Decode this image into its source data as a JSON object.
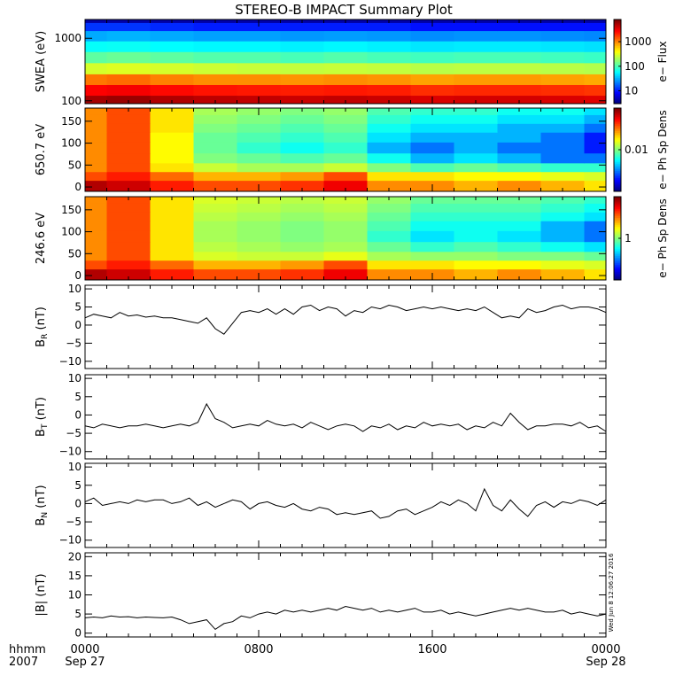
{
  "title": "STEREO-B IMPACT Summary Plot",
  "stamp": "Wed Jun  8 12:06:27 2016",
  "time_axis": {
    "row1_label": "hhmm",
    "row2_label": "2007",
    "ticks": [
      {
        "hour": 0,
        "time": "0000",
        "date": "Sep 27"
      },
      {
        "hour": 8,
        "time": "0800",
        "date": ""
      },
      {
        "hour": 16,
        "time": "1600",
        "date": ""
      },
      {
        "hour": 24,
        "time": "0000",
        "date": "Sep 28"
      }
    ]
  },
  "chart_data": [
    {
      "type": "heatmap",
      "panel": "swea",
      "ylabel": "SWEA (eV)",
      "yscale": "log",
      "ylim": [
        90,
        2000
      ],
      "yticks": [
        {
          "v": 100,
          "label": "100"
        },
        {
          "v": 1000,
          "label": "1000"
        }
      ],
      "colorbar": {
        "label": "e− Flux",
        "scale": "log",
        "range": [
          3,
          8000
        ],
        "ticks": [
          {
            "v": 10,
            "label": "10"
          },
          {
            "v": 100,
            "label": "100"
          },
          {
            "v": 1000,
            "label": "1000"
          }
        ]
      },
      "x_hours": [
        0,
        2,
        4,
        6,
        8,
        10,
        12,
        14,
        16,
        18,
        20,
        22,
        24
      ],
      "energy_eV": [
        100,
        150,
        220,
        330,
        500,
        750,
        1100,
        1600,
        2000
      ],
      "flux": [
        [
          6000,
          6500,
          5500,
          5000,
          4800,
          4500,
          4800,
          4500,
          4000,
          4200,
          4200,
          4000,
          3800
        ],
        [
          3000,
          3200,
          2800,
          2600,
          2500,
          2400,
          2500,
          2400,
          2100,
          2200,
          2200,
          2100,
          2000
        ],
        [
          1200,
          1300,
          1100,
          1000,
          1000,
          950,
          1000,
          950,
          850,
          900,
          900,
          850,
          800
        ],
        [
          300,
          320,
          300,
          280,
          270,
          260,
          270,
          260,
          240,
          250,
          250,
          240,
          230
        ],
        [
          120,
          130,
          120,
          110,
          110,
          100,
          110,
          100,
          95,
          100,
          100,
          95,
          90
        ],
        [
          60,
          62,
          58,
          55,
          55,
          52,
          55,
          52,
          48,
          50,
          50,
          48,
          46
        ],
        [
          30,
          32,
          30,
          28,
          28,
          26,
          27,
          26,
          24,
          25,
          25,
          24,
          23
        ],
        [
          12,
          12,
          11,
          10,
          10,
          10,
          10,
          10,
          9,
          9,
          9,
          9,
          9
        ],
        [
          4,
          4,
          4,
          4,
          4,
          4,
          4,
          4,
          4,
          4,
          4,
          4,
          4
        ]
      ]
    },
    {
      "type": "heatmap",
      "panel": "pad650",
      "ylabel": "650.7 eV",
      "ylim": [
        -10,
        180
      ],
      "yticks": [
        {
          "v": 0,
          "label": "0"
        },
        {
          "v": 50,
          "label": "50"
        },
        {
          "v": 100,
          "label": "100"
        },
        {
          "v": 150,
          "label": "150"
        }
      ],
      "colorbar": {
        "label": "e− Ph Sp Dens",
        "scale": "log",
        "range": [
          0.001,
          0.1
        ],
        "ticks": [
          {
            "v": 0.01,
            "label": "0.01"
          }
        ]
      },
      "x_hours": [
        0,
        2,
        4,
        6,
        8,
        10,
        12,
        14,
        16,
        18,
        20,
        22,
        24
      ],
      "pitch_angle_deg": [
        5,
        25,
        45,
        65,
        90,
        115,
        135,
        155,
        175
      ],
      "psd": [
        [
          0.08,
          0.07,
          0.05,
          0.04,
          0.04,
          0.045,
          0.06,
          0.03,
          0.03,
          0.025,
          0.03,
          0.025,
          0.02
        ],
        [
          0.04,
          0.05,
          0.035,
          0.025,
          0.025,
          0.028,
          0.04,
          0.02,
          0.02,
          0.018,
          0.018,
          0.016,
          0.015
        ],
        [
          0.03,
          0.04,
          0.02,
          0.014,
          0.012,
          0.012,
          0.014,
          0.01,
          0.008,
          0.009,
          0.008,
          0.007,
          0.007
        ],
        [
          0.03,
          0.04,
          0.018,
          0.01,
          0.009,
          0.008,
          0.009,
          0.006,
          0.004,
          0.005,
          0.004,
          0.003,
          0.003
        ],
        [
          0.03,
          0.04,
          0.018,
          0.009,
          0.007,
          0.006,
          0.007,
          0.004,
          0.003,
          0.004,
          0.003,
          0.003,
          0.002
        ],
        [
          0.03,
          0.04,
          0.018,
          0.009,
          0.008,
          0.007,
          0.008,
          0.005,
          0.004,
          0.004,
          0.004,
          0.003,
          0.002
        ],
        [
          0.03,
          0.04,
          0.02,
          0.01,
          0.009,
          0.008,
          0.009,
          0.006,
          0.005,
          0.005,
          0.004,
          0.004,
          0.003
        ],
        [
          0.03,
          0.04,
          0.02,
          0.011,
          0.01,
          0.009,
          0.01,
          0.007,
          0.006,
          0.006,
          0.005,
          0.005,
          0.004
        ],
        [
          0.03,
          0.04,
          0.02,
          0.012,
          0.011,
          0.01,
          0.011,
          0.008,
          0.007,
          0.007,
          0.006,
          0.006,
          0.005
        ]
      ]
    },
    {
      "type": "heatmap",
      "panel": "pad246",
      "ylabel": "246.6 eV",
      "ylim": [
        -10,
        180
      ],
      "yticks": [
        {
          "v": 0,
          "label": "0"
        },
        {
          "v": 50,
          "label": "50"
        },
        {
          "v": 100,
          "label": "100"
        },
        {
          "v": 150,
          "label": "150"
        }
      ],
      "colorbar": {
        "label": "e− Ph Sp Dens",
        "scale": "log",
        "range": [
          0.1,
          10
        ],
        "ticks": [
          {
            "v": 1,
            "label": "1"
          }
        ]
      },
      "x_hours": [
        0,
        2,
        4,
        6,
        8,
        10,
        12,
        14,
        16,
        18,
        20,
        22,
        24
      ],
      "pitch_angle_deg": [
        5,
        25,
        45,
        65,
        90,
        115,
        135,
        155,
        175
      ],
      "psd": [
        [
          8,
          7,
          5,
          4,
          4,
          4.5,
          6,
          3,
          3,
          2.5,
          3,
          2.5,
          2
        ],
        [
          4,
          5,
          3.5,
          2.5,
          2.5,
          2.8,
          4,
          2,
          2,
          1.8,
          1.8,
          1.6,
          1.5
        ],
        [
          3,
          4,
          2,
          1.5,
          1.4,
          1.4,
          1.6,
          1.2,
          1.1,
          1.1,
          1,
          1,
          0.9
        ],
        [
          3,
          4,
          2,
          1.3,
          1.2,
          1.1,
          1.2,
          0.9,
          0.7,
          0.8,
          0.7,
          0.6,
          0.5
        ],
        [
          3,
          4,
          2,
          1.2,
          1.1,
          1,
          1.1,
          0.7,
          0.5,
          0.6,
          0.5,
          0.4,
          0.3
        ],
        [
          3,
          4,
          2,
          1.2,
          1.1,
          1,
          1.1,
          0.8,
          0.6,
          0.6,
          0.6,
          0.4,
          0.3
        ],
        [
          3,
          4,
          2,
          1.3,
          1.2,
          1.1,
          1.2,
          0.9,
          0.7,
          0.7,
          0.7,
          0.6,
          0.5
        ],
        [
          3,
          4,
          2,
          1.4,
          1.3,
          1.2,
          1.3,
          1,
          0.8,
          0.8,
          0.8,
          0.7,
          0.6
        ],
        [
          3,
          4,
          2,
          1.5,
          1.4,
          1.3,
          1.4,
          1.1,
          0.9,
          0.9,
          0.9,
          0.8,
          0.7
        ]
      ]
    },
    {
      "type": "line",
      "panel": "br",
      "ylabel": "B_R (nT)",
      "ylim": [
        -12,
        11
      ],
      "yticks": [
        {
          "v": -10,
          "label": "−10"
        },
        {
          "v": -5,
          "label": "−5"
        },
        {
          "v": 0,
          "label": "0"
        },
        {
          "v": 5,
          "label": "5"
        },
        {
          "v": 10,
          "label": "10"
        }
      ],
      "x_hours": [
        0,
        0.4,
        0.8,
        1.2,
        1.6,
        2.0,
        2.4,
        2.8,
        3.2,
        3.6,
        4.0,
        4.4,
        4.8,
        5.2,
        5.6,
        6.0,
        6.4,
        6.8,
        7.2,
        7.6,
        8.0,
        8.4,
        8.8,
        9.2,
        9.6,
        10.0,
        10.4,
        10.8,
        11.2,
        11.6,
        12.0,
        12.4,
        12.8,
        13.2,
        13.6,
        14.0,
        14.4,
        14.8,
        15.2,
        15.6,
        16.0,
        16.4,
        16.8,
        17.2,
        17.6,
        18.0,
        18.4,
        18.8,
        19.2,
        19.6,
        20.0,
        20.4,
        20.8,
        21.2,
        21.6,
        22.0,
        22.4,
        22.8,
        23.2,
        23.6,
        24.0
      ],
      "values": [
        2.0,
        3.0,
        2.5,
        2.0,
        3.5,
        2.5,
        2.8,
        2.2,
        2.5,
        2.0,
        2.0,
        1.5,
        1.0,
        0.5,
        2.0,
        -1.0,
        -2.5,
        0.5,
        3.5,
        4.0,
        3.5,
        4.5,
        3.0,
        4.5,
        3.0,
        5.0,
        5.5,
        4.0,
        5.0,
        4.5,
        2.5,
        4.0,
        3.5,
        5.0,
        4.5,
        5.5,
        5.0,
        4.0,
        4.5,
        5.0,
        4.5,
        5.0,
        4.5,
        4.0,
        4.5,
        4.0,
        5.0,
        3.5,
        2.0,
        2.5,
        2.0,
        4.5,
        3.5,
        4.0,
        5.0,
        5.5,
        4.5,
        5.0,
        5.0,
        4.5,
        3.5
      ],
      "gap_after_index": [],
      "end_values": [
        4.0,
        2.0,
        -4.0,
        -2.0,
        3.5,
        4.5,
        -2.0,
        1.0
      ]
    },
    {
      "type": "line",
      "panel": "bt",
      "ylabel": "B_T (nT)",
      "ylim": [
        -12,
        11
      ],
      "yticks": [
        {
          "v": -10,
          "label": "−10"
        },
        {
          "v": -5,
          "label": "−5"
        },
        {
          "v": 0,
          "label": "0"
        },
        {
          "v": 5,
          "label": "5"
        },
        {
          "v": 10,
          "label": "10"
        }
      ],
      "x_hours": [
        0,
        0.4,
        0.8,
        1.2,
        1.6,
        2.0,
        2.4,
        2.8,
        3.2,
        3.6,
        4.0,
        4.4,
        4.8,
        5.2,
        5.6,
        6.0,
        6.4,
        6.8,
        7.2,
        7.6,
        8.0,
        8.4,
        8.8,
        9.2,
        9.6,
        10.0,
        10.4,
        10.8,
        11.2,
        11.6,
        12.0,
        12.4,
        12.8,
        13.2,
        13.6,
        14.0,
        14.4,
        14.8,
        15.2,
        15.6,
        16.0,
        16.4,
        16.8,
        17.2,
        17.6,
        18.0,
        18.4,
        18.8,
        19.2,
        19.6,
        20.0,
        20.4,
        20.8,
        21.2,
        21.6,
        22.0,
        22.4,
        22.8,
        23.2,
        23.6,
        24.0
      ],
      "values": [
        -3.0,
        -3.5,
        -2.5,
        -3.0,
        -3.5,
        -3.0,
        -3.0,
        -2.5,
        -3.0,
        -3.5,
        -3.0,
        -2.5,
        -3.0,
        -2.0,
        3.0,
        -1.0,
        -2.0,
        -3.5,
        -3.0,
        -2.5,
        -3.0,
        -1.5,
        -2.5,
        -3.0,
        -2.5,
        -3.5,
        -2.0,
        -3.0,
        -4.0,
        -3.0,
        -2.5,
        -3.0,
        -4.5,
        -3.0,
        -3.5,
        -2.5,
        -4.0,
        -3.0,
        -3.5,
        -2.0,
        -3.0,
        -2.5,
        -3.0,
        -2.5,
        -4.0,
        -3.0,
        -3.5,
        -2.0,
        -3.0,
        0.5,
        -2.0,
        -4.0,
        -3.0,
        -3.0,
        -2.5,
        -2.5,
        -3.0,
        -2.0,
        -3.5,
        -3.0,
        -4.5
      ],
      "end_values": []
    },
    {
      "type": "line",
      "panel": "bn",
      "ylabel": "B_N (nT)",
      "ylim": [
        -12,
        11
      ],
      "yticks": [
        {
          "v": -10,
          "label": "−10"
        },
        {
          "v": -5,
          "label": "−5"
        },
        {
          "v": 0,
          "label": "0"
        },
        {
          "v": 5,
          "label": "5"
        },
        {
          "v": 10,
          "label": "10"
        }
      ],
      "x_hours": [
        0,
        0.4,
        0.8,
        1.2,
        1.6,
        2.0,
        2.4,
        2.8,
        3.2,
        3.6,
        4.0,
        4.4,
        4.8,
        5.2,
        5.6,
        6.0,
        6.4,
        6.8,
        7.2,
        7.6,
        8.0,
        8.4,
        8.8,
        9.2,
        9.6,
        10.0,
        10.4,
        10.8,
        11.2,
        11.6,
        12.0,
        12.4,
        12.8,
        13.2,
        13.6,
        14.0,
        14.4,
        14.8,
        15.2,
        15.6,
        16.0,
        16.4,
        16.8,
        17.2,
        17.6,
        18.0,
        18.4,
        18.8,
        19.2,
        19.6,
        20.0,
        20.4,
        20.8,
        21.2,
        21.6,
        22.0,
        22.4,
        22.8,
        23.2,
        23.6,
        24.0
      ],
      "values": [
        0.5,
        1.5,
        -0.5,
        0.0,
        0.5,
        0.0,
        1.0,
        0.5,
        1.0,
        1.0,
        0.0,
        0.5,
        1.5,
        -0.5,
        0.5,
        -1.0,
        0.0,
        1.0,
        0.5,
        -1.5,
        0.0,
        0.5,
        -0.5,
        -1.0,
        0.0,
        -1.5,
        -2.0,
        -1.0,
        -1.5,
        -3.0,
        -2.5,
        -3.0,
        -2.5,
        -2.0,
        -4.0,
        -3.5,
        -2.0,
        -1.5,
        -3.0,
        -2.0,
        -1.0,
        0.5,
        -0.5,
        1.0,
        0.0,
        -2.0,
        4.0,
        -0.5,
        -2.0,
        1.0,
        -1.5,
        -3.5,
        -0.5,
        0.5,
        -1.0,
        0.5,
        0.0,
        1.0,
        0.5,
        -0.5,
        1.0
      ],
      "end_values": []
    },
    {
      "type": "line",
      "panel": "bmag",
      "ylabel": "|B| (nT)",
      "ylim": [
        -1,
        21
      ],
      "yticks": [
        {
          "v": 0,
          "label": "0"
        },
        {
          "v": 5,
          "label": "5"
        },
        {
          "v": 10,
          "label": "10"
        },
        {
          "v": 15,
          "label": "15"
        },
        {
          "v": 20,
          "label": "20"
        }
      ],
      "x_hours": [
        0,
        0.4,
        0.8,
        1.2,
        1.6,
        2.0,
        2.4,
        2.8,
        3.2,
        3.6,
        4.0,
        4.4,
        4.8,
        5.2,
        5.6,
        6.0,
        6.4,
        6.8,
        7.2,
        7.6,
        8.0,
        8.4,
        8.8,
        9.2,
        9.6,
        10.0,
        10.4,
        10.8,
        11.2,
        11.6,
        12.0,
        12.4,
        12.8,
        13.2,
        13.6,
        14.0,
        14.4,
        14.8,
        15.2,
        15.6,
        16.0,
        16.4,
        16.8,
        17.2,
        17.6,
        18.0,
        18.4,
        18.8,
        19.2,
        19.6,
        20.0,
        20.4,
        20.8,
        21.2,
        21.6,
        22.0,
        22.4,
        22.8,
        23.2,
        23.6,
        24.0
      ],
      "values": [
        4.0,
        4.2,
        4.0,
        4.5,
        4.2,
        4.3,
        4.0,
        4.2,
        4.1,
        4.0,
        4.2,
        3.5,
        2.5,
        3.0,
        3.5,
        1.0,
        2.5,
        3.0,
        4.5,
        4.0,
        5.0,
        5.5,
        5.0,
        6.0,
        5.5,
        6.0,
        5.5,
        6.0,
        6.5,
        6.0,
        7.0,
        6.5,
        6.0,
        6.5,
        5.5,
        6.0,
        5.5,
        6.0,
        6.5,
        5.5,
        5.5,
        6.0,
        5.0,
        5.5,
        5.0,
        4.5,
        5.0,
        5.5,
        6.0,
        6.5,
        6.0,
        6.5,
        6.0,
        5.5,
        5.5,
        6.0,
        5.0,
        5.5,
        5.0,
        4.5,
        5.0
      ],
      "end_values": []
    }
  ]
}
